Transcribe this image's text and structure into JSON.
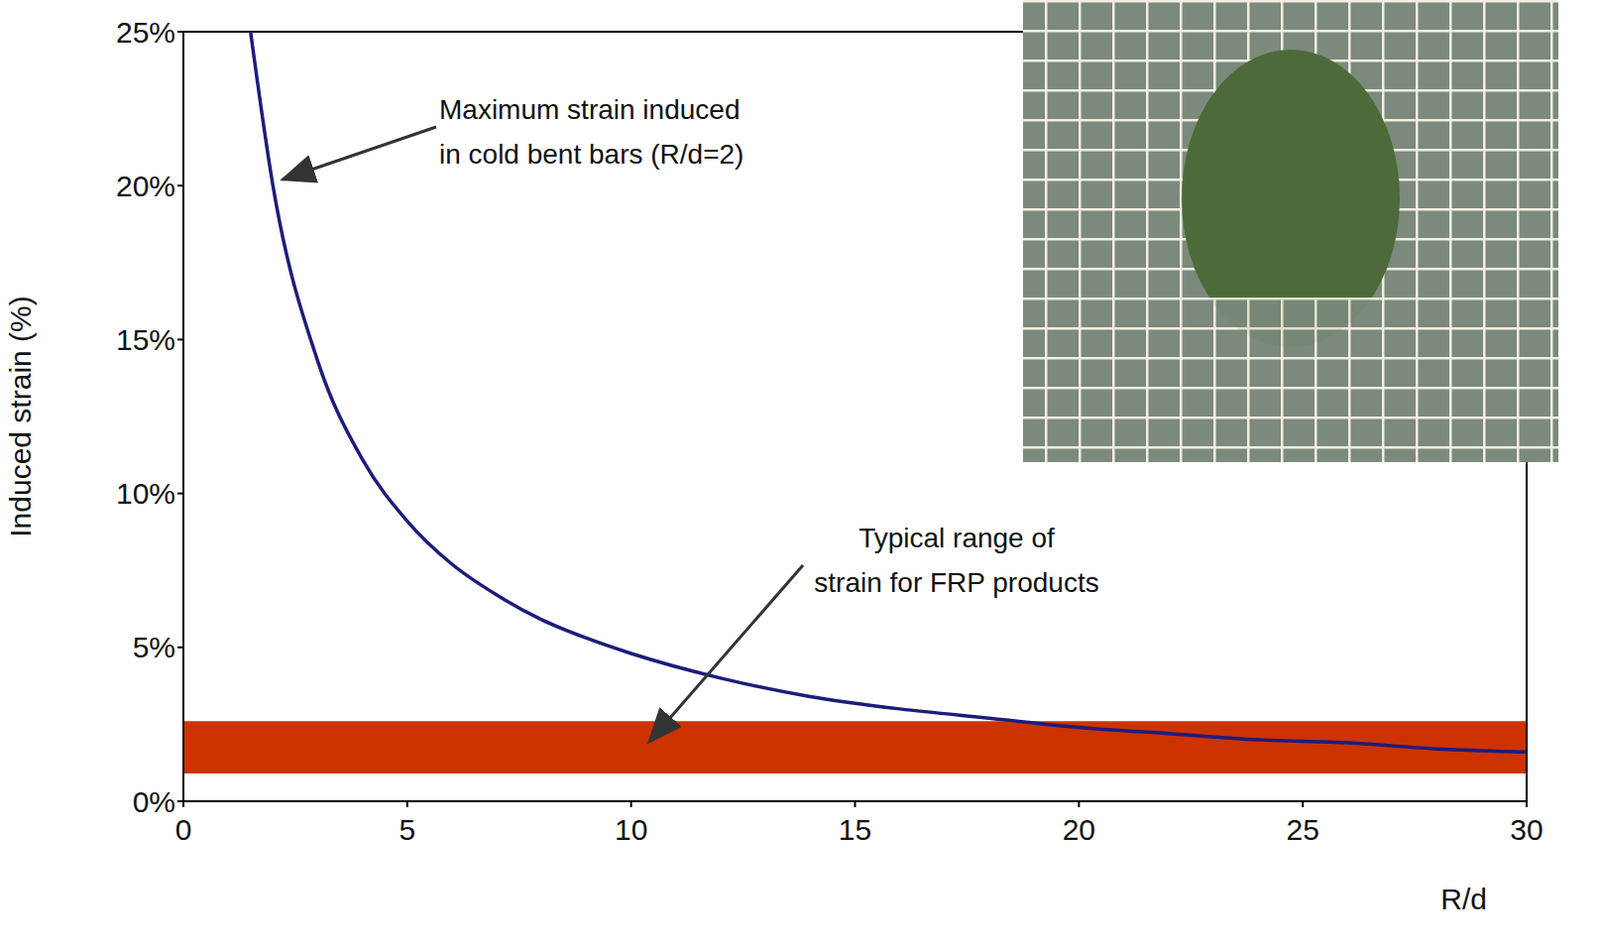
{
  "chart_data": {
    "type": "line",
    "x_label": "R/d",
    "y_label": "Induced strain (%)",
    "xlim": [
      0,
      30
    ],
    "ylim": [
      0,
      25
    ],
    "xticks": [
      0,
      5,
      10,
      15,
      20,
      25,
      30
    ],
    "yticks": [
      {
        "value": 0,
        "label": "0%"
      },
      {
        "value": 5,
        "label": "5%"
      },
      {
        "value": 10,
        "label": "10%"
      },
      {
        "value": 15,
        "label": "15%"
      },
      {
        "value": 20,
        "label": "20%"
      },
      {
        "value": 25,
        "label": "25%"
      }
    ],
    "grid": false,
    "color": "#1c1c7c",
    "x": [
      1.5,
      2,
      3,
      4,
      5,
      6,
      7,
      8,
      9,
      10,
      12,
      14,
      16,
      18,
      20,
      22,
      24,
      26,
      28,
      30
    ],
    "values": [
      25,
      20,
      14.3,
      11.1,
      9.1,
      7.7,
      6.7,
      5.9,
      5.3,
      4.8,
      4.0,
      3.4,
      3.0,
      2.7,
      2.4,
      2.2,
      2.0,
      1.9,
      1.7,
      1.6
    ],
    "band": {
      "label": "Typical range of strain for FRP products",
      "range": [
        0.9,
        2.6
      ],
      "color": "#cc3300"
    },
    "annotations": [
      {
        "text": "Maximum strain induced in cold bent bars (R/d=2)"
      }
    ]
  }
}
